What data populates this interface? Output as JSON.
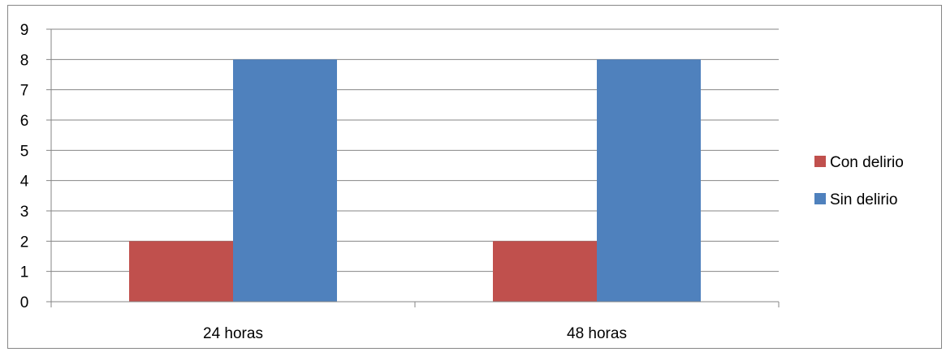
{
  "chart_data": {
    "type": "bar",
    "categories": [
      "24 horas",
      "48 horas"
    ],
    "series": [
      {
        "name": "Con delirio",
        "values": [
          2,
          2
        ],
        "color": "#c0504d"
      },
      {
        "name": "Sin delirio",
        "values": [
          8,
          8
        ],
        "color": "#4f81bd"
      }
    ],
    "ylim": [
      0,
      9
    ],
    "yticks": [
      "0",
      "1",
      "2",
      "3",
      "4",
      "5",
      "6",
      "7",
      "8",
      "9"
    ],
    "grid": true,
    "legend_position": "right"
  }
}
